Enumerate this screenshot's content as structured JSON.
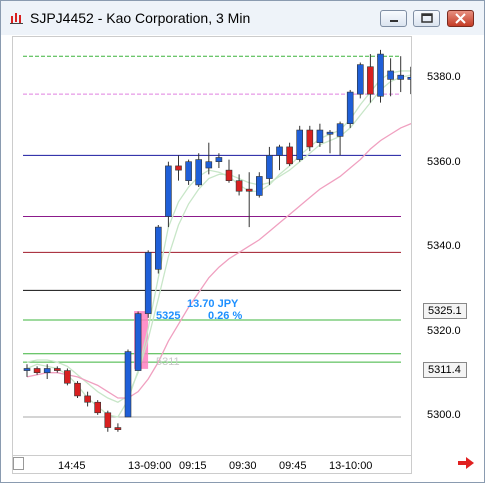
{
  "window": {
    "title": "SJPJ4452 - Kao Corporation, 3 Min",
    "controls": [
      "minimize",
      "maximize",
      "close"
    ]
  },
  "price_axis": {
    "labels": [
      "5380.0",
      "5360.0",
      "5340.0",
      "5320.0",
      "5300.0"
    ],
    "boxes": [
      "5325.1",
      "5311.4"
    ]
  },
  "time_axis": {
    "labels": [
      "14:45",
      "13-09:00",
      "09:15",
      "09:30",
      "09:45",
      "13-10:00"
    ]
  },
  "measurement": {
    "change": "13.70  JPY",
    "price": "5325",
    "percent": "0.26 %",
    "start_price": "5311"
  },
  "colors": {
    "up_candle": "#1f5fd8",
    "down_candle": "#d82020",
    "pink_line": "#f0a0c0",
    "light_green_line": "#c8e6c8",
    "measure_fill": "#ff7fbf"
  },
  "chart_data": {
    "type": "candlestick",
    "ylim": [
      5295,
      5388
    ],
    "horizontal_levels": [
      {
        "value": 5385.5,
        "color": "#3cb43c",
        "style": "dashed"
      },
      {
        "value": 5376.5,
        "color": "#e080e0",
        "style": "dashed"
      },
      {
        "value": 5362,
        "color": "#1a1aa0",
        "style": "solid"
      },
      {
        "value": 5347.5,
        "color": "#8b1a8b",
        "style": "solid"
      },
      {
        "value": 5339,
        "color": "#a01a2a",
        "style": "solid"
      },
      {
        "value": 5330,
        "color": "#111111",
        "style": "solid"
      },
      {
        "value": 5323,
        "color": "#3cb43c",
        "style": "solid"
      },
      {
        "value": 5315,
        "color": "#3cb43c",
        "style": "solid"
      },
      {
        "value": 5313,
        "color": "#3cb43c",
        "style": "solid"
      },
      {
        "value": 5300,
        "color": "#aaaaaa",
        "style": "solid"
      }
    ],
    "candles": [
      {
        "o": 5311.0,
        "h": 5312.5,
        "l": 5309.5,
        "c": 5311.5
      },
      {
        "o": 5311.5,
        "h": 5312.0,
        "l": 5310.0,
        "c": 5310.5
      },
      {
        "o": 5310.5,
        "h": 5312.5,
        "l": 5309.0,
        "c": 5311.5
      },
      {
        "o": 5311.5,
        "h": 5312.0,
        "l": 5310.5,
        "c": 5311.0
      },
      {
        "o": 5311.0,
        "h": 5311.5,
        "l": 5307.5,
        "c": 5308.0
      },
      {
        "o": 5308.0,
        "h": 5308.5,
        "l": 5304.5,
        "c": 5305.0
      },
      {
        "o": 5305.0,
        "h": 5306.0,
        "l": 5302.5,
        "c": 5303.5
      },
      {
        "o": 5303.5,
        "h": 5304.0,
        "l": 5300.5,
        "c": 5301.0
      },
      {
        "o": 5301.0,
        "h": 5301.5,
        "l": 5296.5,
        "c": 5297.5
      },
      {
        "o": 5297.5,
        "h": 5298.5,
        "l": 5296.5,
        "c": 5297.0
      },
      {
        "o": 5300.0,
        "h": 5316.0,
        "l": 5300.0,
        "c": 5315.5
      },
      {
        "o": 5311.0,
        "h": 5325.0,
        "l": 5311.0,
        "c": 5324.5
      },
      {
        "o": 5324.5,
        "h": 5339.5,
        "l": 5323.5,
        "c": 5339.0
      },
      {
        "o": 5335.0,
        "h": 5345.5,
        "l": 5334.0,
        "c": 5345.0
      },
      {
        "o": 5347.5,
        "h": 5360.5,
        "l": 5345.0,
        "c": 5359.5
      },
      {
        "o": 5359.5,
        "h": 5362.0,
        "l": 5356.0,
        "c": 5358.5
      },
      {
        "o": 5356.0,
        "h": 5361.0,
        "l": 5355.0,
        "c": 5360.5
      },
      {
        "o": 5355.0,
        "h": 5362.5,
        "l": 5354.5,
        "c": 5361.0
      },
      {
        "o": 5359.0,
        "h": 5365.0,
        "l": 5357.5,
        "c": 5360.5
      },
      {
        "o": 5360.5,
        "h": 5362.5,
        "l": 5359.0,
        "c": 5361.5
      },
      {
        "o": 5358.5,
        "h": 5361.0,
        "l": 5355.5,
        "c": 5356.0
      },
      {
        "o": 5356.0,
        "h": 5357.5,
        "l": 5352.5,
        "c": 5353.5
      },
      {
        "o": 5354.0,
        "h": 5358.0,
        "l": 5345.0,
        "c": 5353.5
      },
      {
        "o": 5352.5,
        "h": 5358.0,
        "l": 5352.0,
        "c": 5357.0
      },
      {
        "o": 5356.5,
        "h": 5364.0,
        "l": 5355.0,
        "c": 5362.0
      },
      {
        "o": 5362.0,
        "h": 5364.5,
        "l": 5358.5,
        "c": 5364.0
      },
      {
        "o": 5364.0,
        "h": 5365.0,
        "l": 5359.5,
        "c": 5360.0
      },
      {
        "o": 5361.0,
        "h": 5369.0,
        "l": 5360.5,
        "c": 5368.0
      },
      {
        "o": 5368.0,
        "h": 5369.0,
        "l": 5363.0,
        "c": 5364.0
      },
      {
        "o": 5365.0,
        "h": 5369.5,
        "l": 5364.0,
        "c": 5368.0
      },
      {
        "o": 5367.0,
        "h": 5368.0,
        "l": 5362.5,
        "c": 5367.5
      },
      {
        "o": 5366.5,
        "h": 5370.0,
        "l": 5362.0,
        "c": 5369.5
      },
      {
        "o": 5369.5,
        "h": 5377.5,
        "l": 5368.5,
        "c": 5377.0
      },
      {
        "o": 5376.5,
        "h": 5384.0,
        "l": 5375.5,
        "c": 5383.5
      },
      {
        "o": 5383.0,
        "h": 5386.0,
        "l": 5374.5,
        "c": 5376.5
      },
      {
        "o": 5376.0,
        "h": 5387.0,
        "l": 5374.5,
        "c": 5386.0
      },
      {
        "o": 5380.0,
        "h": 5385.0,
        "l": 5376.0,
        "c": 5382.0
      },
      {
        "o": 5380.0,
        "h": 5385.5,
        "l": 5377.0,
        "c": 5381.0
      },
      {
        "o": 5380.0,
        "h": 5383.0,
        "l": 5376.5,
        "c": 5380.5
      },
      {
        "o": 5381.0,
        "h": 5384.0,
        "l": 5372.5,
        "c": 5378.5
      }
    ],
    "pink_series": [
      5309.5,
      5310.0,
      5310.5,
      5310.5,
      5310.0,
      5309.5,
      5308.5,
      5307.5,
      5306.0,
      5304.5,
      5304.5,
      5306.0,
      5309.0,
      5313.0,
      5318.0,
      5322.0,
      5326.0,
      5329.5,
      5333.0,
      5335.5,
      5337.5,
      5339.0,
      5340.5,
      5342.0,
      5344.0,
      5346.0,
      5348.0,
      5350.0,
      5352.0,
      5354.0,
      5355.5,
      5357.0,
      5359.0,
      5361.0,
      5363.5,
      5365.5,
      5367.0,
      5368.5,
      5369.5,
      5370.5
    ],
    "green_series": [
      5311.5,
      5312.5,
      5312.0,
      5311.5,
      5310.0,
      5307.5,
      5304.5,
      5302.5,
      5300.5,
      5300.0,
      5304.0,
      5311.0,
      5321.0,
      5333.0,
      5345.0,
      5351.0,
      5354.5,
      5357.0,
      5358.5,
      5358.0,
      5357.0,
      5355.0,
      5353.5,
      5353.5,
      5355.0,
      5357.5,
      5359.5,
      5362.0,
      5364.0,
      5366.0,
      5367.0,
      5368.0,
      5370.5,
      5374.0,
      5377.0,
      5380.0,
      5381.5,
      5382.0,
      5382.0,
      5381.0
    ],
    "green_series_2": [
      5313.0,
      5313.5,
      5313.5,
      5313.0,
      5312.0,
      5310.0,
      5308.0,
      5306.0,
      5304.5,
      5303.5,
      5305.0,
      5310.5,
      5318.5,
      5328.0,
      5338.0,
      5345.5,
      5350.5,
      5354.0,
      5356.5,
      5357.5,
      5357.5,
      5356.5,
      5355.5,
      5355.0,
      5355.5,
      5357.0,
      5358.5,
      5360.5,
      5362.5,
      5364.5,
      5365.5,
      5366.5,
      5368.5,
      5371.5,
      5374.5,
      5377.5,
      5379.5,
      5380.5,
      5381.0,
      5381.0
    ]
  }
}
